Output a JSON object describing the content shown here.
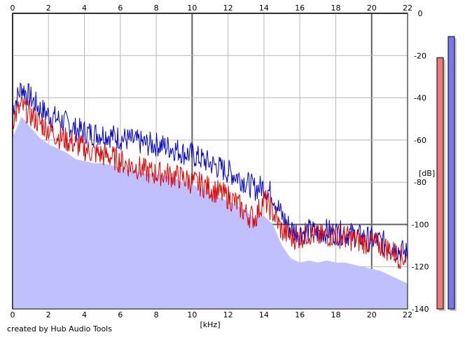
{
  "credit_text": "created by Hub Audio Tools",
  "chart_data": {
    "type": "area",
    "xlabel": "[kHz]",
    "ylabel": "[dB]",
    "xlim": [
      0,
      22
    ],
    "ylim": [
      -140,
      0
    ],
    "x_ticks": [
      "0",
      "2",
      "4",
      "6",
      "8",
      "10",
      "12",
      "14",
      "16",
      "18",
      "20",
      "22"
    ],
    "y_ticks": [
      "0",
      "-20",
      "-40",
      "-60",
      "-80",
      "-100",
      "-120",
      "-140"
    ],
    "grid": true,
    "x": [
      0,
      0.5,
      1,
      1.5,
      2,
      2.5,
      3,
      3.5,
      4,
      4.5,
      5,
      5.5,
      6,
      6.5,
      7,
      7.5,
      8,
      8.5,
      9,
      9.5,
      10,
      10.5,
      11,
      11.5,
      12,
      12.5,
      13,
      13.5,
      14,
      14.5,
      15,
      15.5,
      16,
      16.5,
      17,
      17.5,
      18,
      18.5,
      19,
      19.5,
      20,
      20.5,
      21,
      21.5,
      22
    ],
    "series": [
      {
        "color": "#0000cc",
        "values": [
          -45,
          -35,
          -40,
          -45,
          -48,
          -50,
          -52,
          -55,
          -56,
          -57,
          -57,
          -58,
          -59,
          -60,
          -61,
          -62,
          -62,
          -63,
          -64,
          -66,
          -67,
          -69,
          -71,
          -73,
          -75,
          -77,
          -80,
          -83,
          -82,
          -86,
          -96,
          -102,
          -104,
          -103,
          -104,
          -103,
          -104,
          -104,
          -105,
          -106,
          -107,
          -108,
          -110,
          -112,
          -114
        ]
      },
      {
        "color": "#dd0000",
        "values": [
          -50,
          -44,
          -48,
          -52,
          -55,
          -58,
          -60,
          -62,
          -64,
          -66,
          -67,
          -68,
          -70,
          -72,
          -73,
          -75,
          -76,
          -76,
          -77,
          -78,
          -80,
          -81,
          -83,
          -85,
          -87,
          -90,
          -95,
          -97,
          -88,
          -94,
          -103,
          -106,
          -106,
          -104,
          -106,
          -105,
          -105,
          -106,
          -107,
          -108,
          -109,
          -110,
          -112,
          -115,
          -116
        ]
      }
    ],
    "fill_color": "#c0c0ff",
    "level_meters": [
      {
        "color": "#ee7777",
        "value_db": -21
      },
      {
        "color": "#7777ee",
        "value_db": -11
      }
    ]
  }
}
